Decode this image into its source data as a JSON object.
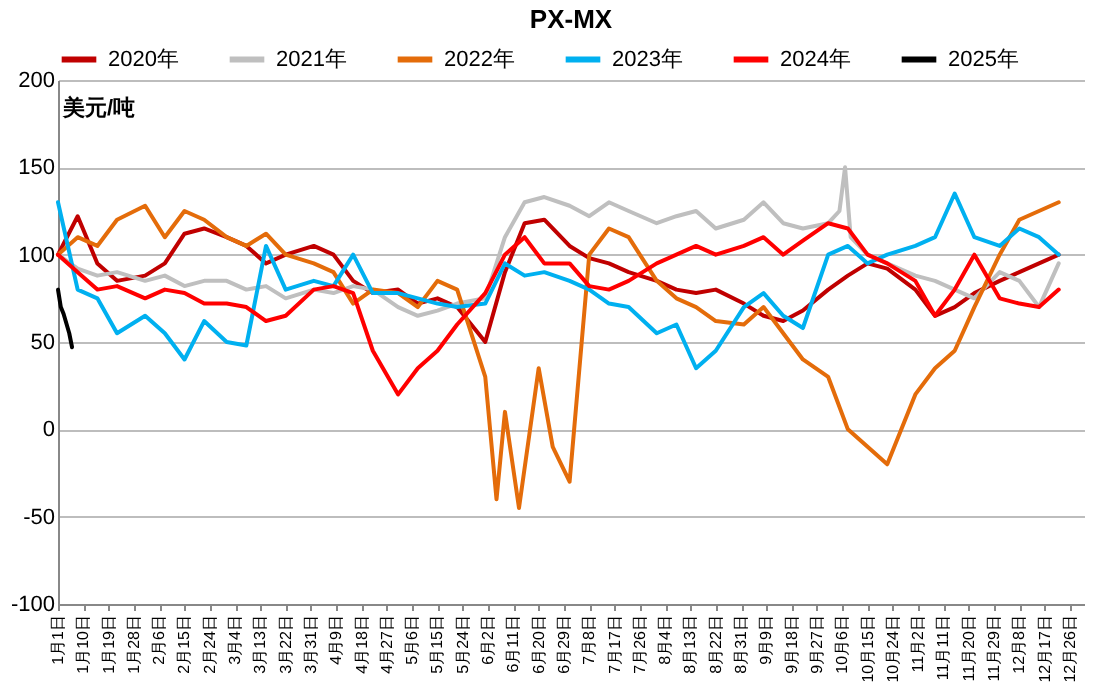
{
  "chart_data": {
    "type": "line",
    "title": "PX-MX",
    "ylabel": "美元/吨",
    "legend": "top",
    "grid": "y",
    "line_style": "solid",
    "xlim": [
      "--01-01",
      "--12-31"
    ],
    "ylim": [
      -100,
      200
    ],
    "yticks": [
      -100,
      -50,
      0,
      50,
      100,
      150,
      200
    ],
    "xticks": [
      {
        "value": "--01-01",
        "label": "1月1日"
      },
      {
        "value": "--01-10",
        "label": "1月10日"
      },
      {
        "value": "--01-19",
        "label": "1月19日"
      },
      {
        "value": "--01-28",
        "label": "1月28日"
      },
      {
        "value": "--02-06",
        "label": "2月6日"
      },
      {
        "value": "--02-15",
        "label": "2月15日"
      },
      {
        "value": "--02-24",
        "label": "2月24日"
      },
      {
        "value": "--03-04",
        "label": "3月4日"
      },
      {
        "value": "--03-13",
        "label": "3月13日"
      },
      {
        "value": "--03-22",
        "label": "3月22日"
      },
      {
        "value": "--03-31",
        "label": "3月31日"
      },
      {
        "value": "--04-09",
        "label": "4月9日"
      },
      {
        "value": "--04-18",
        "label": "4月18日"
      },
      {
        "value": "--04-27",
        "label": "4月27日"
      },
      {
        "value": "--05-06",
        "label": "5月6日"
      },
      {
        "value": "--05-15",
        "label": "5月15日"
      },
      {
        "value": "--05-24",
        "label": "5月24日"
      },
      {
        "value": "--06-02",
        "label": "6月2日"
      },
      {
        "value": "--06-11",
        "label": "6月11日"
      },
      {
        "value": "--06-20",
        "label": "6月20日"
      },
      {
        "value": "--06-29",
        "label": "6月29日"
      },
      {
        "value": "--07-08",
        "label": "7月8日"
      },
      {
        "value": "--07-17",
        "label": "7月17日"
      },
      {
        "value": "--07-26",
        "label": "7月26日"
      },
      {
        "value": "--08-04",
        "label": "8月4日"
      },
      {
        "value": "--08-13",
        "label": "8月13日"
      },
      {
        "value": "--08-22",
        "label": "8月22日"
      },
      {
        "value": "--08-31",
        "label": "8月31日"
      },
      {
        "value": "--09-09",
        "label": "9月9日"
      },
      {
        "value": "--09-18",
        "label": "9月18日"
      },
      {
        "value": "--09-27",
        "label": "9月27日"
      },
      {
        "value": "--10-06",
        "label": "10月6日"
      },
      {
        "value": "--10-15",
        "label": "10月15日"
      },
      {
        "value": "--10-24",
        "label": "10月24日"
      },
      {
        "value": "--11-02",
        "label": "11月2日"
      },
      {
        "value": "--11-11",
        "label": "11月11日"
      },
      {
        "value": "--11-20",
        "label": "11月20日"
      },
      {
        "value": "--11-29",
        "label": "11月29日"
      },
      {
        "value": "--12-08",
        "label": "12月8日"
      },
      {
        "value": "--12-17",
        "label": "12月17日"
      },
      {
        "value": "--12-26",
        "label": "12月26日"
      }
    ],
    "series": [
      {
        "name": "2020年",
        "color": "#c00000",
        "x": [
          "--01-01",
          "--01-08",
          "--01-15",
          "--01-22",
          "--02-01",
          "--02-08",
          "--02-15",
          "--02-22",
          "--03-01",
          "--03-08",
          "--03-15",
          "--03-22",
          "--04-01",
          "--04-08",
          "--04-15",
          "--04-22",
          "--05-01",
          "--05-08",
          "--05-15",
          "--05-22",
          "--06-01",
          "--06-08",
          "--06-15",
          "--06-22",
          "--07-01",
          "--07-08",
          "--07-15",
          "--07-22",
          "--08-01",
          "--08-08",
          "--08-15",
          "--08-22",
          "--09-01",
          "--09-08",
          "--09-15",
          "--09-22",
          "--10-01",
          "--10-08",
          "--10-15",
          "--10-22",
          "--11-01",
          "--11-08",
          "--11-15",
          "--11-22",
          "--12-01",
          "--12-08",
          "--12-15",
          "--12-22"
        ],
        "values": [
          100,
          122,
          95,
          85,
          88,
          95,
          112,
          115,
          110,
          105,
          95,
          100,
          105,
          100,
          85,
          78,
          80,
          72,
          75,
          70,
          50,
          90,
          118,
          120,
          105,
          98,
          95,
          90,
          85,
          80,
          78,
          80,
          72,
          65,
          62,
          68,
          80,
          88,
          95,
          92,
          80,
          65,
          70,
          78,
          85,
          90,
          95,
          100
        ]
      },
      {
        "name": "2021年",
        "color": "#bfbfbf",
        "x": [
          "--01-01",
          "--01-08",
          "--01-15",
          "--01-22",
          "--02-01",
          "--02-08",
          "--02-15",
          "--02-22",
          "--03-01",
          "--03-08",
          "--03-15",
          "--03-22",
          "--04-01",
          "--04-08",
          "--04-15",
          "--04-22",
          "--05-01",
          "--05-08",
          "--05-15",
          "--05-22",
          "--06-01",
          "--06-08",
          "--06-15",
          "--06-22",
          "--07-01",
          "--07-08",
          "--07-15",
          "--07-22",
          "--08-01",
          "--08-08",
          "--08-15",
          "--08-22",
          "--09-01",
          "--09-08",
          "--09-15",
          "--09-22",
          "--10-01",
          "--10-05",
          "--10-07",
          "--10-09",
          "--10-15",
          "--10-22",
          "--11-01",
          "--11-08",
          "--11-15",
          "--11-22",
          "--12-01",
          "--12-08",
          "--12-15",
          "--12-22"
        ],
        "values": [
          100,
          92,
          88,
          90,
          85,
          88,
          82,
          85,
          85,
          80,
          82,
          75,
          80,
          78,
          82,
          80,
          70,
          65,
          68,
          72,
          75,
          110,
          130,
          133,
          128,
          122,
          130,
          125,
          118,
          122,
          125,
          115,
          120,
          130,
          118,
          115,
          118,
          125,
          150,
          110,
          100,
          95,
          88,
          85,
          80,
          75,
          90,
          85,
          70,
          95
        ]
      },
      {
        "name": "2022年",
        "color": "#e46c0a",
        "x": [
          "--01-01",
          "--01-08",
          "--01-15",
          "--01-22",
          "--02-01",
          "--02-08",
          "--02-15",
          "--02-22",
          "--03-01",
          "--03-08",
          "--03-15",
          "--03-22",
          "--04-01",
          "--04-08",
          "--04-15",
          "--04-22",
          "--05-01",
          "--05-08",
          "--05-15",
          "--05-22",
          "--06-01",
          "--06-05",
          "--06-08",
          "--06-13",
          "--06-20",
          "--06-25",
          "--07-01",
          "--07-08",
          "--07-15",
          "--07-22",
          "--08-01",
          "--08-08",
          "--08-15",
          "--08-22",
          "--09-01",
          "--09-08",
          "--09-15",
          "--09-22",
          "--10-01",
          "--10-08",
          "--10-15",
          "--10-22",
          "--11-01",
          "--11-08",
          "--11-15",
          "--11-22",
          "--12-01",
          "--12-08",
          "--12-15",
          "--12-22"
        ],
        "values": [
          100,
          110,
          105,
          120,
          128,
          110,
          125,
          120,
          110,
          105,
          112,
          100,
          95,
          90,
          72,
          80,
          78,
          70,
          85,
          80,
          30,
          -40,
          10,
          -45,
          35,
          -10,
          -30,
          100,
          115,
          110,
          85,
          75,
          70,
          62,
          60,
          70,
          55,
          40,
          30,
          0,
          -10,
          -20,
          20,
          35,
          45,
          70,
          100,
          120,
          125,
          130
        ]
      },
      {
        "name": "2023年",
        "color": "#00b0f0",
        "x": [
          "--01-01",
          "--01-08",
          "--01-15",
          "--01-22",
          "--02-01",
          "--02-08",
          "--02-15",
          "--02-22",
          "--03-01",
          "--03-08",
          "--03-15",
          "--03-22",
          "--04-01",
          "--04-08",
          "--04-15",
          "--04-22",
          "--05-01",
          "--05-08",
          "--05-15",
          "--05-22",
          "--06-01",
          "--06-08",
          "--06-15",
          "--06-22",
          "--07-01",
          "--07-08",
          "--07-15",
          "--07-22",
          "--08-01",
          "--08-08",
          "--08-15",
          "--08-22",
          "--09-01",
          "--09-08",
          "--09-15",
          "--09-22",
          "--10-01",
          "--10-08",
          "--10-15",
          "--10-22",
          "--11-01",
          "--11-08",
          "--11-15",
          "--11-22",
          "--12-01",
          "--12-08",
          "--12-15",
          "--12-22"
        ],
        "values": [
          130,
          80,
          75,
          55,
          65,
          55,
          40,
          62,
          50,
          48,
          105,
          80,
          85,
          82,
          100,
          78,
          78,
          75,
          72,
          70,
          72,
          95,
          88,
          90,
          85,
          80,
          72,
          70,
          55,
          60,
          35,
          45,
          70,
          78,
          65,
          58,
          100,
          105,
          95,
          100,
          105,
          110,
          135,
          110,
          105,
          115,
          110,
          100
        ]
      },
      {
        "name": "2024年",
        "color": "#ff0000",
        "x": [
          "--01-01",
          "--01-08",
          "--01-15",
          "--01-22",
          "--02-01",
          "--02-08",
          "--02-15",
          "--02-22",
          "--03-01",
          "--03-08",
          "--03-15",
          "--03-22",
          "--04-01",
          "--04-08",
          "--04-15",
          "--04-22",
          "--05-01",
          "--05-08",
          "--05-15",
          "--05-22",
          "--06-01",
          "--06-08",
          "--06-15",
          "--06-22",
          "--07-01",
          "--07-08",
          "--07-15",
          "--07-22",
          "--08-01",
          "--08-08",
          "--08-15",
          "--08-22",
          "--09-01",
          "--09-08",
          "--09-15",
          "--09-22",
          "--10-01",
          "--10-08",
          "--10-15",
          "--10-22",
          "--11-01",
          "--11-08",
          "--11-15",
          "--11-22",
          "--12-01",
          "--12-08",
          "--12-15",
          "--12-22"
        ],
        "values": [
          100,
          90,
          80,
          82,
          75,
          80,
          78,
          72,
          72,
          70,
          62,
          65,
          80,
          82,
          78,
          45,
          20,
          35,
          45,
          60,
          78,
          100,
          110,
          95,
          95,
          82,
          80,
          85,
          95,
          100,
          105,
          100,
          105,
          110,
          100,
          108,
          118,
          115,
          100,
          95,
          85,
          65,
          80,
          100,
          75,
          72,
          70,
          80
        ]
      },
      {
        "name": "2025年",
        "color": "#000000",
        "x": [
          "--01-01",
          "--01-02",
          "--01-03",
          "--01-05",
          "--01-06"
        ],
        "values": [
          80,
          70,
          66,
          55,
          47
        ]
      }
    ]
  }
}
